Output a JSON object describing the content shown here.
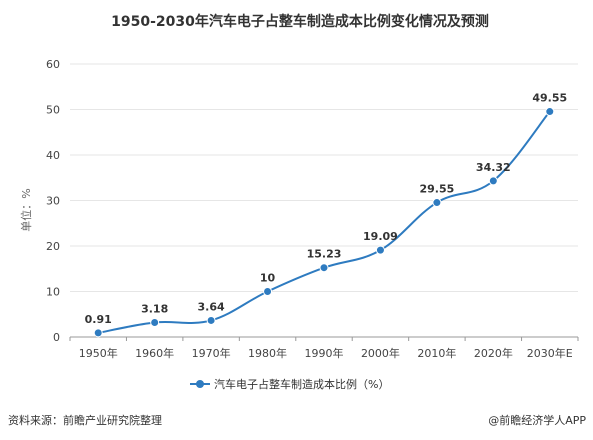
{
  "chart_data": {
    "type": "line",
    "title": "1950-2030年汽车电子占整车制造成本比例变化情况及预测",
    "ylabel": "单位：%",
    "xlabel": "",
    "categories": [
      "1950年",
      "1960年",
      "1970年",
      "1980年",
      "1990年",
      "2000年",
      "2010年",
      "2020年",
      "2030年E"
    ],
    "series": [
      {
        "name": "汽车电子占整车制造成本比例（%）",
        "values": [
          0.91,
          3.18,
          3.64,
          10,
          15.23,
          19.09,
          29.55,
          34.32,
          49.55
        ],
        "labels": [
          "0.91",
          "3.18",
          "3.64",
          "10",
          "15.23",
          "19.09",
          "29.55",
          "34.32",
          "49.55"
        ]
      }
    ],
    "ylim": [
      0,
      60
    ],
    "yticks": [
      "0",
      "10",
      "20",
      "30",
      "40",
      "50",
      "60"
    ],
    "grid": true,
    "legend_position": "bottom",
    "color": "#2e7bc0"
  },
  "footer": {
    "source": "资料来源：前瞻产业研究院整理",
    "brand": "@前瞻经济学人APP"
  }
}
